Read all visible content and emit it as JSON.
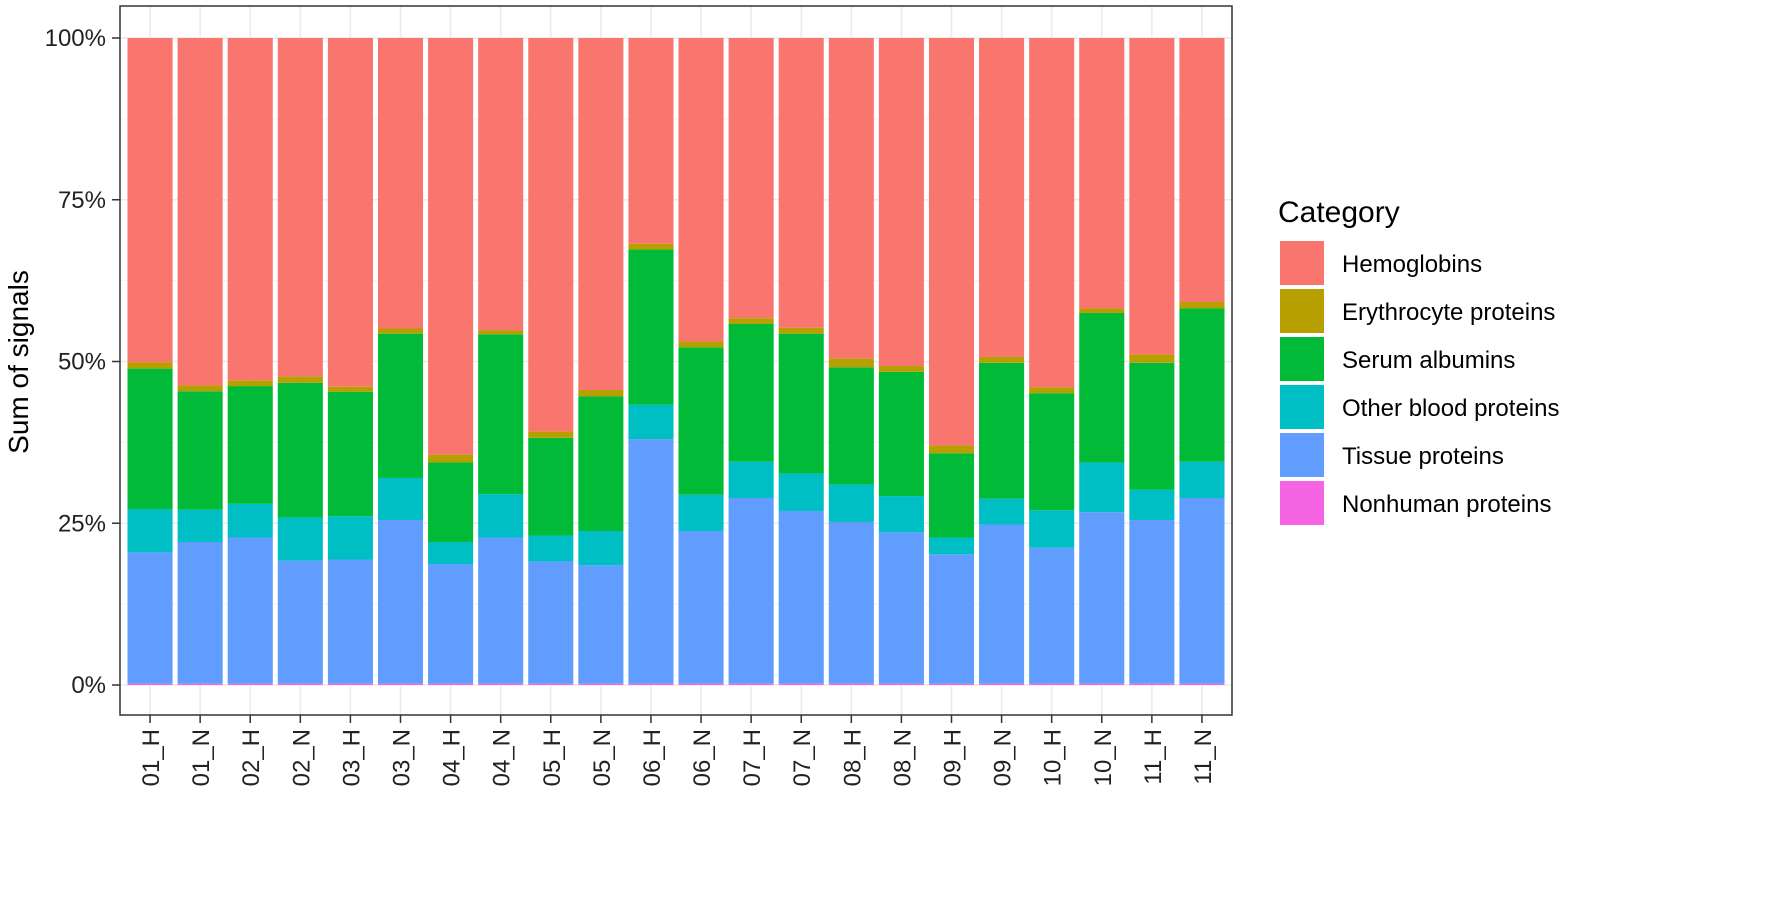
{
  "chart_data": {
    "type": "bar",
    "stacked": true,
    "normalized": true,
    "categories": [
      "01_H",
      "01_N",
      "02_H",
      "02_N",
      "03_H",
      "03_N",
      "04_H",
      "04_N",
      "05_H",
      "05_N",
      "06_H",
      "06_N",
      "07_H",
      "07_N",
      "08_H",
      "08_N",
      "09_H",
      "09_N",
      "10_H",
      "10_N",
      "11_H",
      "11_N"
    ],
    "series": [
      {
        "name": "Nonhuman proteins",
        "color": "#F564E3",
        "values": [
          0.2,
          0.2,
          0.2,
          0.2,
          0.2,
          0.2,
          0.2,
          0.2,
          0.2,
          0.2,
          0.2,
          0.2,
          0.2,
          0.2,
          0.2,
          0.2,
          0.2,
          0.2,
          0.2,
          0.2,
          0.2,
          0.2
        ]
      },
      {
        "name": "Tissue proteins",
        "color": "#619CFF",
        "values": [
          20.3,
          21.9,
          22.6,
          19.0,
          19.2,
          25.3,
          18.5,
          22.6,
          18.9,
          18.3,
          37.8,
          23.6,
          28.7,
          26.7,
          25.0,
          23.4,
          20.0,
          24.6,
          21.0,
          26.5,
          25.3,
          28.7
        ]
      },
      {
        "name": "Other blood proteins",
        "color": "#00BFC4",
        "values": [
          6.7,
          5.0,
          5.2,
          6.7,
          6.7,
          6.5,
          3.4,
          6.7,
          4.0,
          5.3,
          5.3,
          5.6,
          5.6,
          5.8,
          5.8,
          5.6,
          2.6,
          4.0,
          5.8,
          7.7,
          4.7,
          5.6
        ]
      },
      {
        "name": "Serum albumins",
        "color": "#00BA38",
        "values": [
          21.7,
          18.3,
          18.2,
          20.8,
          19.2,
          22.3,
          12.3,
          24.7,
          15.1,
          20.8,
          24.0,
          22.8,
          21.3,
          21.6,
          18.1,
          19.2,
          13.0,
          21.0,
          18.1,
          23.1,
          19.6,
          23.7
        ]
      },
      {
        "name": "Erythrocyte proteins",
        "color": "#B79F00",
        "values": [
          1.0,
          0.9,
          0.9,
          1.0,
          0.8,
          0.8,
          1.2,
          0.6,
          1.0,
          1.0,
          0.9,
          0.9,
          0.9,
          0.9,
          1.4,
          0.9,
          1.2,
          0.9,
          0.9,
          0.7,
          1.3,
          1.0
        ]
      },
      {
        "name": "Hemoglobins",
        "color": "#F8766D",
        "values": [
          50.1,
          53.7,
          52.9,
          52.3,
          53.9,
          44.9,
          64.4,
          45.2,
          60.8,
          54.4,
          31.8,
          46.9,
          43.3,
          44.8,
          49.5,
          50.7,
          63.0,
          49.3,
          54.0,
          41.8,
          48.9,
          40.8
        ]
      }
    ],
    "legend_order": [
      "Hemoglobins",
      "Erythrocyte proteins",
      "Serum albumins",
      "Other blood proteins",
      "Tissue proteins",
      "Nonhuman proteins"
    ],
    "title": "",
    "xlabel": "",
    "ylabel": "Sum of signals",
    "ylim": [
      0,
      100
    ],
    "yticks": [
      0,
      25,
      50,
      75,
      100
    ],
    "ytick_labels": [
      "0%",
      "25%",
      "50%",
      "75%",
      "100%"
    ],
    "grid": true,
    "legend": {
      "title": "Category",
      "position": "right"
    }
  }
}
